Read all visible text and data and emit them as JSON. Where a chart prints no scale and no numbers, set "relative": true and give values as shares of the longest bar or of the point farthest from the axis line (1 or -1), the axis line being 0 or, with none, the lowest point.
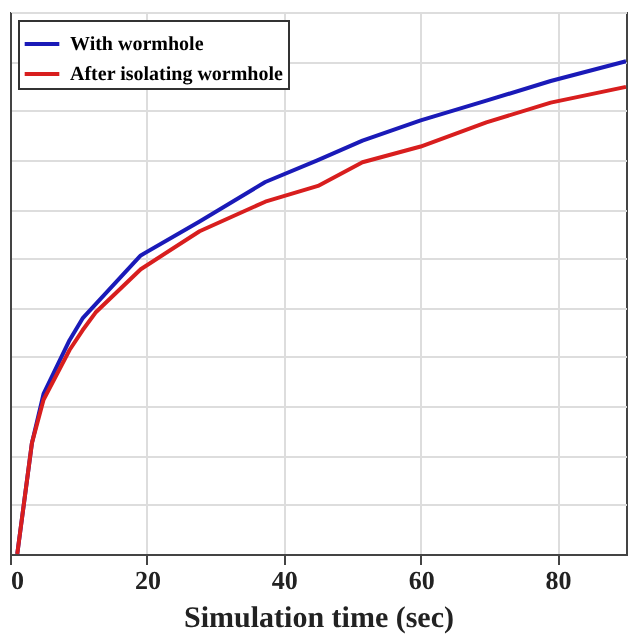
{
  "chart_data": {
    "type": "line",
    "xlabel": "Simulation time (sec)",
    "relative": true,
    "xlim": [
      0,
      90
    ],
    "xticks": [
      0,
      20,
      40,
      60,
      80
    ],
    "grid": true,
    "legend": "top left",
    "line_style": "solid",
    "series": [
      {
        "name": "With wormhole",
        "color": "#1a1ab8",
        "x": [
          1.06,
          3.2,
          4.9,
          8.7,
          10.6,
          19.1,
          27.7,
          37.3,
          44.9,
          51.5,
          60,
          69.6,
          79,
          90
        ],
        "values": [
          0,
          0.225,
          0.325,
          0.434,
          0.478,
          0.606,
          0.675,
          0.755,
          0.799,
          0.839,
          0.88,
          0.92,
          0.96,
          1
        ]
      },
      {
        "name": "After isolating wormhole",
        "color": "#d81e1e",
        "x": [
          1.06,
          3.2,
          4.9,
          8.7,
          10.6,
          12.5,
          19.1,
          27.7,
          37.3,
          45,
          51.5,
          60,
          69.6,
          79,
          90
        ],
        "values": [
          0,
          0.225,
          0.313,
          0.414,
          0.454,
          0.49,
          0.578,
          0.655,
          0.715,
          0.747,
          0.795,
          0.827,
          0.876,
          0.916,
          0.948
        ]
      }
    ]
  }
}
